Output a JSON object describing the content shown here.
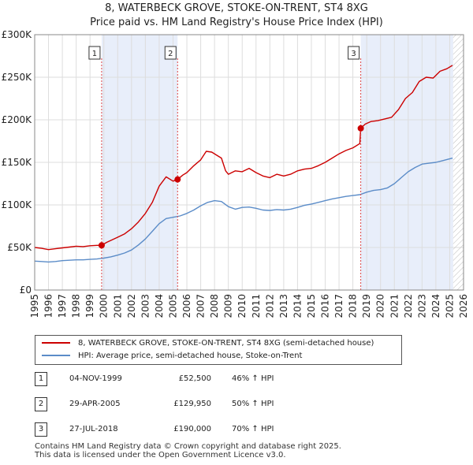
{
  "chart_data": {
    "type": "line",
    "title": "8, WATERBECK GROVE, STOKE-ON-TRENT, ST4 8XG",
    "subtitle": "Price paid vs. HM Land Registry's House Price Index (HPI)",
    "xlim": [
      1995,
      2026
    ],
    "ylim": [
      0,
      300000
    ],
    "x_ticks": [
      "1995",
      "1996",
      "1997",
      "1998",
      "1999",
      "2000",
      "2001",
      "2002",
      "2003",
      "2004",
      "2005",
      "2006",
      "2007",
      "2008",
      "2009",
      "2010",
      "2011",
      "2012",
      "2013",
      "2014",
      "2015",
      "2016",
      "2017",
      "2018",
      "2019",
      "2020",
      "2021",
      "2022",
      "2023",
      "2024",
      "2025",
      "2026"
    ],
    "y_ticks": [
      {
        "value": 0,
        "label": "£0"
      },
      {
        "value": 50000,
        "label": "£50K"
      },
      {
        "value": 100000,
        "label": "£100K"
      },
      {
        "value": 150000,
        "label": "£150K"
      },
      {
        "value": 200000,
        "label": "£200K"
      },
      {
        "value": 250000,
        "label": "£250K"
      },
      {
        "value": 300000,
        "label": "£300K"
      }
    ],
    "shaded_periods": [
      [
        1999.84,
        2005.33
      ],
      [
        2018.57,
        2025.25
      ]
    ],
    "future_hatch_from": 2025.25,
    "series": [
      {
        "name": "8, WATERBECK GROVE, STOKE-ON-TRENT, ST4 8XG (semi-detached house)",
        "color": "#cc0000",
        "x": [
          1995,
          1995.5,
          1996,
          1996.5,
          1997,
          1997.5,
          1998,
          1998.5,
          1999,
          1999.5,
          1999.84,
          2000.2,
          2000.6,
          2001,
          2001.5,
          2002,
          2002.5,
          2003,
          2003.5,
          2004,
          2004.5,
          2005,
          2005.33,
          2005.7,
          2006,
          2006.5,
          2007,
          2007.4,
          2007.8,
          2008.2,
          2008.5,
          2008.8,
          2009,
          2009.5,
          2010,
          2010.5,
          2011,
          2011.5,
          2012,
          2012.5,
          2013,
          2013.5,
          2014,
          2014.5,
          2015,
          2015.5,
          2016,
          2016.5,
          2017,
          2017.5,
          2018,
          2018.5,
          2018.57,
          2018.9,
          2019.3,
          2019.8,
          2020.3,
          2020.8,
          2021.3,
          2021.8,
          2022.3,
          2022.8,
          2023.3,
          2023.8,
          2024.3,
          2024.8,
          2025.2
        ],
        "y": [
          50000,
          49000,
          47500,
          48500,
          49500,
          50500,
          51500,
          51000,
          52000,
          52500,
          52500,
          56000,
          59000,
          62000,
          66000,
          72000,
          80000,
          90000,
          103000,
          122000,
          133000,
          128000,
          129950,
          135000,
          138000,
          146000,
          153000,
          163000,
          162000,
          158000,
          155000,
          140000,
          136000,
          140000,
          139000,
          143000,
          138000,
          134000,
          132000,
          136000,
          134000,
          136000,
          140000,
          142000,
          143000,
          146000,
          150000,
          155000,
          160000,
          164000,
          167000,
          172000,
          190000,
          195000,
          198000,
          199000,
          201000,
          203000,
          212000,
          225000,
          232000,
          245000,
          250000,
          249000,
          257000,
          260000,
          264000
        ]
      },
      {
        "name": "HPI: Average price, semi-detached house, Stoke-on-Trent",
        "color": "#5b8cc8",
        "x": [
          1995,
          1995.5,
          1996,
          1996.5,
          1997,
          1997.5,
          1998,
          1998.5,
          1999,
          1999.5,
          2000,
          2000.5,
          2001,
          2001.5,
          2002,
          2002.5,
          2003,
          2003.5,
          2004,
          2004.5,
          2005,
          2005.5,
          2006,
          2006.5,
          2007,
          2007.5,
          2008,
          2008.5,
          2009,
          2009.5,
          2010,
          2010.5,
          2011,
          2011.5,
          2012,
          2012.5,
          2013,
          2013.5,
          2014,
          2014.5,
          2015,
          2015.5,
          2016,
          2016.5,
          2017,
          2017.5,
          2018,
          2018.5,
          2019,
          2019.5,
          2020,
          2020.5,
          2021,
          2021.5,
          2022,
          2022.5,
          2023,
          2023.5,
          2024,
          2024.5,
          2025.2
        ],
        "y": [
          34000,
          33500,
          33000,
          33500,
          34500,
          35000,
          35500,
          35500,
          36000,
          36500,
          37500,
          39000,
          41000,
          43500,
          47000,
          53000,
          60000,
          69000,
          78000,
          84000,
          85500,
          87000,
          90000,
          94000,
          99000,
          103000,
          105000,
          104000,
          98000,
          95000,
          97000,
          97500,
          96000,
          94000,
          93500,
          94500,
          94000,
          95000,
          97000,
          99500,
          101000,
          103000,
          105000,
          107000,
          108500,
          110000,
          111000,
          112000,
          115000,
          117000,
          118000,
          120000,
          125000,
          132000,
          139000,
          144000,
          148000,
          149000,
          150000,
          152000,
          155000
        ]
      }
    ],
    "sales": [
      {
        "num": "1",
        "x": 1999.84,
        "y": 52500
      },
      {
        "num": "2",
        "x": 2005.33,
        "y": 129950
      },
      {
        "num": "3",
        "x": 2018.57,
        "y": 190000
      }
    ]
  },
  "legend": {
    "property_label": "8, WATERBECK GROVE, STOKE-ON-TRENT, ST4 8XG (semi-detached house)",
    "hpi_label": "HPI: Average price, semi-detached house, Stoke-on-Trent"
  },
  "transactions": [
    {
      "num": "1",
      "date": "04-NOV-1999",
      "price": "£52,500",
      "hpi": "46% ↑ HPI"
    },
    {
      "num": "2",
      "date": "29-APR-2005",
      "price": "£129,950",
      "hpi": "50% ↑ HPI"
    },
    {
      "num": "3",
      "date": "27-JUL-2018",
      "price": "£190,000",
      "hpi": "70% ↑ HPI"
    }
  ],
  "footer": {
    "line1": "Contains HM Land Registry data © Crown copyright and database right 2025.",
    "line2": "This data is licensed under the Open Government Licence v3.0."
  },
  "colors": {
    "property": "#cc0000",
    "hpi": "#5b8cc8",
    "shade": "#e8eefa",
    "grid": "#dddddd"
  }
}
